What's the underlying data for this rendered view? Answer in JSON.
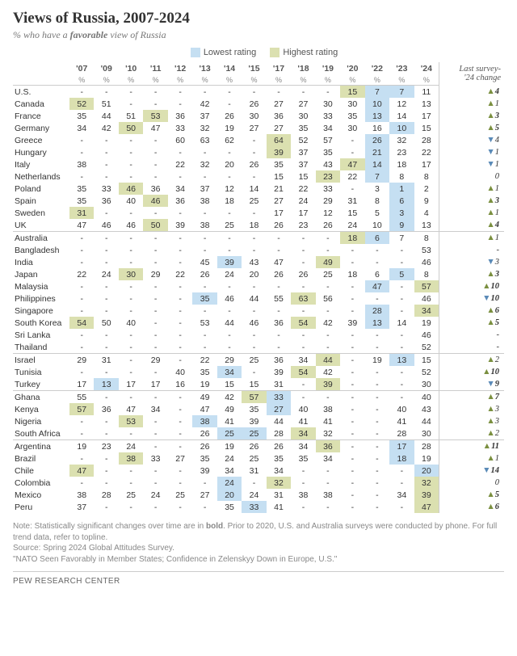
{
  "title": "Views of Russia, 2007-2024",
  "subtitle_pre": "% who have a ",
  "subtitle_bold": "favorable",
  "subtitle_post": " view of Russia",
  "legend": {
    "low_color": "#c5dff2",
    "low_label": "Lowest rating",
    "high_color": "#dbe0b0",
    "high_label": "Highest rating"
  },
  "years": [
    "'07",
    "'09",
    "'10",
    "'11",
    "'12",
    "'13",
    "'14",
    "'15",
    "'17",
    "'18",
    "'19",
    "'20",
    "'22",
    "'23",
    "'24"
  ],
  "change_header": "Last survey-\n'24 change",
  "groups": [
    {
      "countries": [
        {
          "n": "U.S.",
          "v": [
            "-",
            "-",
            "-",
            "-",
            "-",
            "-",
            "-",
            "-",
            "-",
            "-",
            "-",
            "15",
            "7",
            "7",
            "11"
          ],
          "lo": [
            "22",
            "23"
          ],
          "hi": [
            "20"
          ],
          "chg": "4",
          "dir": "up",
          "bold": true
        },
        {
          "n": "Canada",
          "v": [
            "52",
            "51",
            "-",
            "-",
            "-",
            "42",
            "-",
            "26",
            "27",
            "27",
            "30",
            "30",
            "10",
            "12",
            "13"
          ],
          "lo": [
            "22"
          ],
          "hi": [
            "07"
          ],
          "chg": "1",
          "dir": "up",
          "bold": false
        },
        {
          "n": "France",
          "v": [
            "35",
            "44",
            "51",
            "53",
            "36",
            "37",
            "26",
            "30",
            "36",
            "30",
            "33",
            "35",
            "13",
            "14",
            "17"
          ],
          "lo": [
            "22"
          ],
          "hi": [
            "11"
          ],
          "chg": "3",
          "dir": "up",
          "bold": true
        },
        {
          "n": "Germany",
          "v": [
            "34",
            "42",
            "50",
            "47",
            "33",
            "32",
            "19",
            "27",
            "27",
            "35",
            "34",
            "30",
            "16",
            "10",
            "15"
          ],
          "lo": [
            "23"
          ],
          "hi": [
            "10"
          ],
          "chg": "5",
          "dir": "up",
          "bold": true
        },
        {
          "n": "Greece",
          "v": [
            "-",
            "-",
            "-",
            "-",
            "60",
            "63",
            "62",
            "-",
            "64",
            "52",
            "57",
            "-",
            "26",
            "32",
            "28"
          ],
          "lo": [
            "22"
          ],
          "hi": [
            "17"
          ],
          "chg": "4",
          "dir": "down",
          "bold": false
        },
        {
          "n": "Hungary",
          "v": [
            "-",
            "-",
            "-",
            "-",
            "-",
            "-",
            "-",
            "-",
            "39",
            "37",
            "35",
            "-",
            "21",
            "23",
            "22"
          ],
          "lo": [
            "22"
          ],
          "hi": [
            "17"
          ],
          "chg": "1",
          "dir": "down",
          "bold": false
        },
        {
          "n": "Italy",
          "v": [
            "38",
            "-",
            "-",
            "-",
            "22",
            "32",
            "20",
            "26",
            "35",
            "37",
            "43",
            "47",
            "14",
            "18",
            "17"
          ],
          "lo": [
            "22"
          ],
          "hi": [
            "20"
          ],
          "chg": "1",
          "dir": "down",
          "bold": false
        },
        {
          "n": "Netherlands",
          "v": [
            "-",
            "-",
            "-",
            "-",
            "-",
            "-",
            "-",
            "-",
            "15",
            "15",
            "23",
            "22",
            "7",
            "8",
            "8"
          ],
          "lo": [
            "22"
          ],
          "hi": [
            "19"
          ],
          "chg": "0",
          "dir": "none",
          "bold": false
        },
        {
          "n": "Poland",
          "v": [
            "35",
            "33",
            "46",
            "36",
            "34",
            "37",
            "12",
            "14",
            "21",
            "22",
            "33",
            "-",
            "3",
            "1",
            "2"
          ],
          "lo": [
            "23"
          ],
          "hi": [
            "10"
          ],
          "chg": "1",
          "dir": "up",
          "bold": false
        },
        {
          "n": "Spain",
          "v": [
            "35",
            "36",
            "40",
            "46",
            "36",
            "38",
            "18",
            "25",
            "27",
            "24",
            "29",
            "31",
            "8",
            "6",
            "9"
          ],
          "lo": [
            "23"
          ],
          "hi": [
            "11"
          ],
          "chg": "3",
          "dir": "up",
          "bold": true
        },
        {
          "n": "Sweden",
          "v": [
            "31",
            "-",
            "-",
            "-",
            "-",
            "-",
            "-",
            "-",
            "17",
            "17",
            "12",
            "15",
            "5",
            "3",
            "4"
          ],
          "lo": [
            "23"
          ],
          "hi": [
            "07"
          ],
          "chg": "1",
          "dir": "up",
          "bold": false
        },
        {
          "n": "UK",
          "v": [
            "47",
            "46",
            "46",
            "50",
            "39",
            "38",
            "25",
            "18",
            "26",
            "23",
            "26",
            "24",
            "10",
            "9",
            "13"
          ],
          "lo": [
            "23"
          ],
          "hi": [
            "11"
          ],
          "chg": "4",
          "dir": "up",
          "bold": true
        }
      ]
    },
    {
      "countries": [
        {
          "n": "Australia",
          "v": [
            "-",
            "-",
            "-",
            "-",
            "-",
            "-",
            "-",
            "-",
            "-",
            "-",
            "-",
            "18",
            "6",
            "7",
            "8"
          ],
          "lo": [
            "22"
          ],
          "hi": [
            "20"
          ],
          "chg": "1",
          "dir": "up",
          "bold": false
        },
        {
          "n": "Bangladesh",
          "v": [
            "-",
            "-",
            "-",
            "-",
            "-",
            "-",
            "-",
            "-",
            "-",
            "-",
            "-",
            "-",
            "-",
            "-",
            "53"
          ],
          "lo": [],
          "hi": [],
          "chg": "-",
          "dir": "none",
          "bold": false
        },
        {
          "n": "India",
          "v": [
            "-",
            "-",
            "-",
            "-",
            "-",
            "45",
            "39",
            "43",
            "47",
            "-",
            "49",
            "-",
            "-",
            "-",
            "46"
          ],
          "lo": [
            "14"
          ],
          "hi": [
            "19"
          ],
          "chg": "3",
          "dir": "down",
          "bold": false
        },
        {
          "n": "Japan",
          "v": [
            "22",
            "24",
            "30",
            "29",
            "22",
            "26",
            "24",
            "20",
            "26",
            "26",
            "25",
            "18",
            "6",
            "5",
            "8"
          ],
          "lo": [
            "23"
          ],
          "hi": [
            "10"
          ],
          "chg": "3",
          "dir": "up",
          "bold": true
        },
        {
          "n": "Malaysia",
          "v": [
            "-",
            "-",
            "-",
            "-",
            "-",
            "-",
            "-",
            "-",
            "-",
            "-",
            "-",
            "-",
            "47",
            "-",
            "57"
          ],
          "lo": [
            "22"
          ],
          "hi": [
            "24"
          ],
          "chg": "10",
          "dir": "up",
          "bold": true
        },
        {
          "n": "Philippines",
          "v": [
            "-",
            "-",
            "-",
            "-",
            "-",
            "35",
            "46",
            "44",
            "55",
            "63",
            "56",
            "-",
            "-",
            "-",
            "46"
          ],
          "lo": [
            "13"
          ],
          "hi": [
            "18"
          ],
          "chg": "10",
          "dir": "down",
          "bold": true
        },
        {
          "n": "Singapore",
          "v": [
            "-",
            "-",
            "-",
            "-",
            "-",
            "-",
            "-",
            "-",
            "-",
            "-",
            "-",
            "-",
            "28",
            "-",
            "34"
          ],
          "lo": [
            "22"
          ],
          "hi": [
            "24"
          ],
          "chg": "6",
          "dir": "up",
          "bold": true
        },
        {
          "n": "South Korea",
          "v": [
            "54",
            "50",
            "40",
            "-",
            "-",
            "53",
            "44",
            "46",
            "36",
            "54",
            "42",
            "39",
            "13",
            "14",
            "19"
          ],
          "lo": [
            "22"
          ],
          "hi": [
            "07",
            "18"
          ],
          "chg": "5",
          "dir": "up",
          "bold": true
        },
        {
          "n": "Sri Lanka",
          "v": [
            "-",
            "-",
            "-",
            "-",
            "-",
            "-",
            "-",
            "-",
            "-",
            "-",
            "-",
            "-",
            "-",
            "-",
            "46"
          ],
          "lo": [],
          "hi": [],
          "chg": "-",
          "dir": "none",
          "bold": false
        },
        {
          "n": "Thailand",
          "v": [
            "-",
            "-",
            "-",
            "-",
            "-",
            "-",
            "-",
            "-",
            "-",
            "-",
            "-",
            "-",
            "-",
            "-",
            "52"
          ],
          "lo": [],
          "hi": [],
          "chg": "-",
          "dir": "none",
          "bold": false
        }
      ]
    },
    {
      "countries": [
        {
          "n": "Israel",
          "v": [
            "29",
            "31",
            "-",
            "29",
            "-",
            "22",
            "29",
            "25",
            "36",
            "34",
            "44",
            "-",
            "19",
            "13",
            "15"
          ],
          "lo": [
            "23"
          ],
          "hi": [
            "19"
          ],
          "chg": "2",
          "dir": "up",
          "bold": false
        },
        {
          "n": "Tunisia",
          "v": [
            "-",
            "-",
            "-",
            "-",
            "40",
            "35",
            "34",
            "-",
            "39",
            "54",
            "42",
            "-",
            "-",
            "-",
            "52"
          ],
          "lo": [
            "14"
          ],
          "hi": [
            "18"
          ],
          "chg": "10",
          "dir": "up",
          "bold": true
        },
        {
          "n": "Turkey",
          "v": [
            "17",
            "13",
            "17",
            "17",
            "16",
            "19",
            "15",
            "15",
            "31",
            "-",
            "39",
            "-",
            "-",
            "-",
            "30"
          ],
          "lo": [
            "09"
          ],
          "hi": [
            "19"
          ],
          "chg": "9",
          "dir": "down",
          "bold": true
        }
      ]
    },
    {
      "countries": [
        {
          "n": "Ghana",
          "v": [
            "55",
            "-",
            "-",
            "-",
            "-",
            "49",
            "42",
            "57",
            "33",
            "-",
            "-",
            "-",
            "-",
            "-",
            "40"
          ],
          "lo": [
            "17"
          ],
          "hi": [
            "15"
          ],
          "chg": "7",
          "dir": "up",
          "bold": true
        },
        {
          "n": "Kenya",
          "v": [
            "57",
            "36",
            "47",
            "34",
            "-",
            "47",
            "49",
            "35",
            "27",
            "40",
            "38",
            "-",
            "-",
            "40",
            "43"
          ],
          "lo": [
            "17"
          ],
          "hi": [
            "07"
          ],
          "chg": "3",
          "dir": "up",
          "bold": false
        },
        {
          "n": "Nigeria",
          "v": [
            "-",
            "-",
            "53",
            "-",
            "-",
            "38",
            "41",
            "39",
            "44",
            "41",
            "41",
            "-",
            "-",
            "41",
            "44"
          ],
          "lo": [
            "13"
          ],
          "hi": [
            "10"
          ],
          "chg": "3",
          "dir": "up",
          "bold": false
        },
        {
          "n": "South Africa",
          "v": [
            "-",
            "-",
            "-",
            "-",
            "-",
            "26",
            "25",
            "25",
            "28",
            "34",
            "32",
            "-",
            "-",
            "28",
            "30"
          ],
          "lo": [
            "14",
            "15"
          ],
          "hi": [
            "18"
          ],
          "chg": "2",
          "dir": "up",
          "bold": false
        }
      ]
    },
    {
      "countries": [
        {
          "n": "Argentina",
          "v": [
            "19",
            "23",
            "24",
            "-",
            "-",
            "26",
            "19",
            "26",
            "26",
            "34",
            "36",
            "-",
            "-",
            "17",
            "28"
          ],
          "lo": [
            "23"
          ],
          "hi": [
            "19"
          ],
          "chg": "11",
          "dir": "up",
          "bold": true
        },
        {
          "n": "Brazil",
          "v": [
            "-",
            "-",
            "38",
            "33",
            "27",
            "35",
            "24",
            "25",
            "35",
            "35",
            "34",
            "-",
            "-",
            "18",
            "19"
          ],
          "lo": [
            "23"
          ],
          "hi": [
            "10"
          ],
          "chg": "1",
          "dir": "up",
          "bold": false
        },
        {
          "n": "Chile",
          "v": [
            "47",
            "-",
            "-",
            "-",
            "-",
            "39",
            "34",
            "31",
            "34",
            "-",
            "-",
            "-",
            "-",
            "-",
            "20"
          ],
          "lo": [
            "24"
          ],
          "hi": [
            "07"
          ],
          "chg": "14",
          "dir": "down",
          "bold": true
        },
        {
          "n": "Colombia",
          "v": [
            "-",
            "-",
            "-",
            "-",
            "-",
            "-",
            "24",
            "-",
            "32",
            "-",
            "-",
            "-",
            "-",
            "-",
            "32"
          ],
          "lo": [
            "14"
          ],
          "hi": [
            "17",
            "24"
          ],
          "chg": "0",
          "dir": "none",
          "bold": false
        },
        {
          "n": "Mexico",
          "v": [
            "38",
            "28",
            "25",
            "24",
            "25",
            "27",
            "20",
            "24",
            "31",
            "38",
            "38",
            "-",
            "-",
            "34",
            "39"
          ],
          "lo": [
            "14"
          ],
          "hi": [
            "24"
          ],
          "chg": "5",
          "dir": "up",
          "bold": true
        },
        {
          "n": "Peru",
          "v": [
            "37",
            "-",
            "-",
            "-",
            "-",
            "-",
            "35",
            "33",
            "41",
            "-",
            "-",
            "-",
            "-",
            "-",
            "47"
          ],
          "lo": [
            "15"
          ],
          "hi": [
            "24"
          ],
          "chg": "6",
          "dir": "up",
          "bold": true
        }
      ]
    }
  ],
  "note_lines": [
    "Note: Statistically significant changes over time are in <b>bold</b>. Prior to 2020, U.S. and Australia surveys were conducted by phone. For full trend data, refer to topline.",
    "Source: Spring 2024 Global Attitudes Survey.",
    "\"NATO Seen Favorably in Member States; Confidence in Zelenskyy Down in Europe, U.S.\""
  ],
  "footer": "PEW RESEARCH CENTER"
}
